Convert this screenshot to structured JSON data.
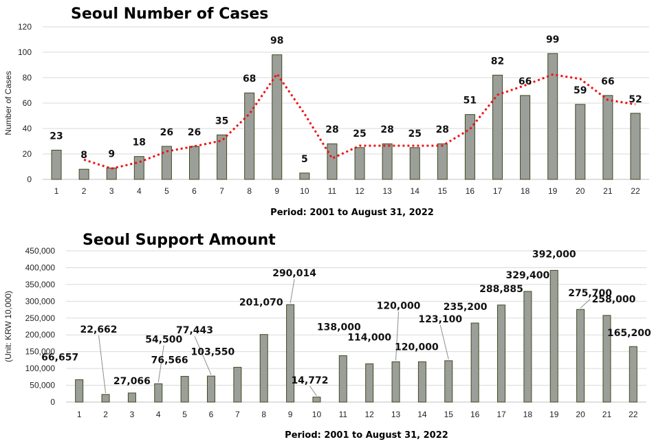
{
  "chart_data": [
    {
      "type": "bar",
      "title": "Seoul  Number of Cases",
      "xlabel": "Period: 2001 to August 31, 2022",
      "ylabel": "Number  of Cases",
      "ylim": [
        0,
        120
      ],
      "yticks": [
        "0",
        "20",
        "40",
        "60",
        "80",
        "100",
        "120"
      ],
      "categories": [
        "1",
        "2",
        "3",
        "4",
        "5",
        "6",
        "7",
        "8",
        "9",
        "10",
        "11",
        "12",
        "13",
        "14",
        "15",
        "16",
        "17",
        "18",
        "19",
        "20",
        "21",
        "22"
      ],
      "values": [
        23,
        8,
        9,
        18,
        26,
        26,
        35,
        68,
        98,
        5,
        28,
        25,
        28,
        25,
        28,
        51,
        82,
        66,
        99,
        59,
        66,
        52
      ],
      "data_labels": [
        "23",
        "8",
        "9",
        "18",
        "26",
        "26",
        "35",
        "68",
        "98",
        "5",
        "28",
        "25",
        "28",
        "25",
        "28",
        "51",
        "82",
        "66",
        "99",
        "59",
        "66",
        "52"
      ],
      "trendline": {
        "type": "2-period moving average",
        "color": "#ee1111"
      },
      "grid": true,
      "bar_color": "#9c9e99"
    },
    {
      "type": "bar",
      "title": "Seoul Support Amount",
      "xlabel": "Period: 2001 to August 31, 2022",
      "ylabel": "(Unit: KRW 10,000)",
      "ylim": [
        0,
        450000
      ],
      "yticks": [
        "0",
        "50,000",
        "100,000",
        "150,000",
        "200,000",
        "250,000",
        "300,000",
        "350,000",
        "400,000",
        "450,000"
      ],
      "categories": [
        "1",
        "2",
        "3",
        "4",
        "5",
        "6",
        "7",
        "8",
        "9",
        "10",
        "11",
        "12",
        "13",
        "14",
        "15",
        "16",
        "17",
        "18",
        "19",
        "20",
        "21",
        "22"
      ],
      "values": [
        66657,
        22662,
        27066,
        54500,
        76566,
        77443,
        103550,
        201070,
        290014,
        14772,
        138000,
        114000,
        120000,
        120000,
        123100,
        235200,
        288885,
        329400,
        392000,
        275700,
        258000,
        165200
      ],
      "data_labels": [
        "66,657",
        "22,662",
        "27,066",
        "54,500",
        "76,566",
        "77,443",
        "103,550",
        "201,070",
        "290,014",
        "14,772",
        "138,000",
        "114,000",
        "120,000",
        "120,000",
        "123,100",
        "235,200",
        "288,885",
        "329,400",
        "392,000",
        "275,700",
        "258,000",
        "165,200"
      ],
      "grid": true,
      "bar_color": "#9c9e99"
    }
  ]
}
